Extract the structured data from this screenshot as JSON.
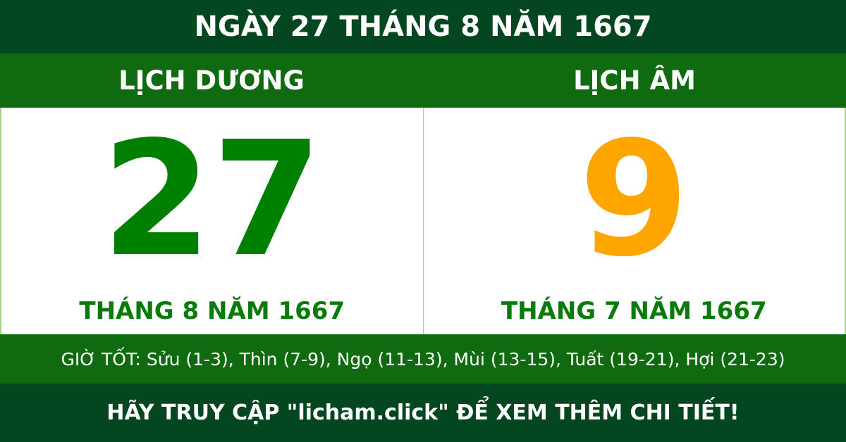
{
  "header": {
    "title": "NGÀY 27 THÁNG 8 NĂM 1667"
  },
  "solar": {
    "label": "LỊCH DƯƠNG",
    "day": "27",
    "month_year": "THÁNG 8 NĂM 1667"
  },
  "lunar": {
    "label": "LỊCH ÂM",
    "day": "9",
    "month_year": "THÁNG 7 NĂM 1667"
  },
  "good_hours": "GIỜ TỐT: Sửu (1-3), Thìn (7-9), Ngọ (11-13), Mùi (13-15), Tuất (19-21), Hợi (21-23)",
  "footer": {
    "cta": "HÃY TRUY CẬP \"licham.click\" ĐỂ XEM THÊM CHI TIẾT!"
  },
  "colors": {
    "dark_green": "#034620",
    "band_green": "#106b10",
    "solar_day": "#008000",
    "lunar_day": "#FFA500"
  }
}
